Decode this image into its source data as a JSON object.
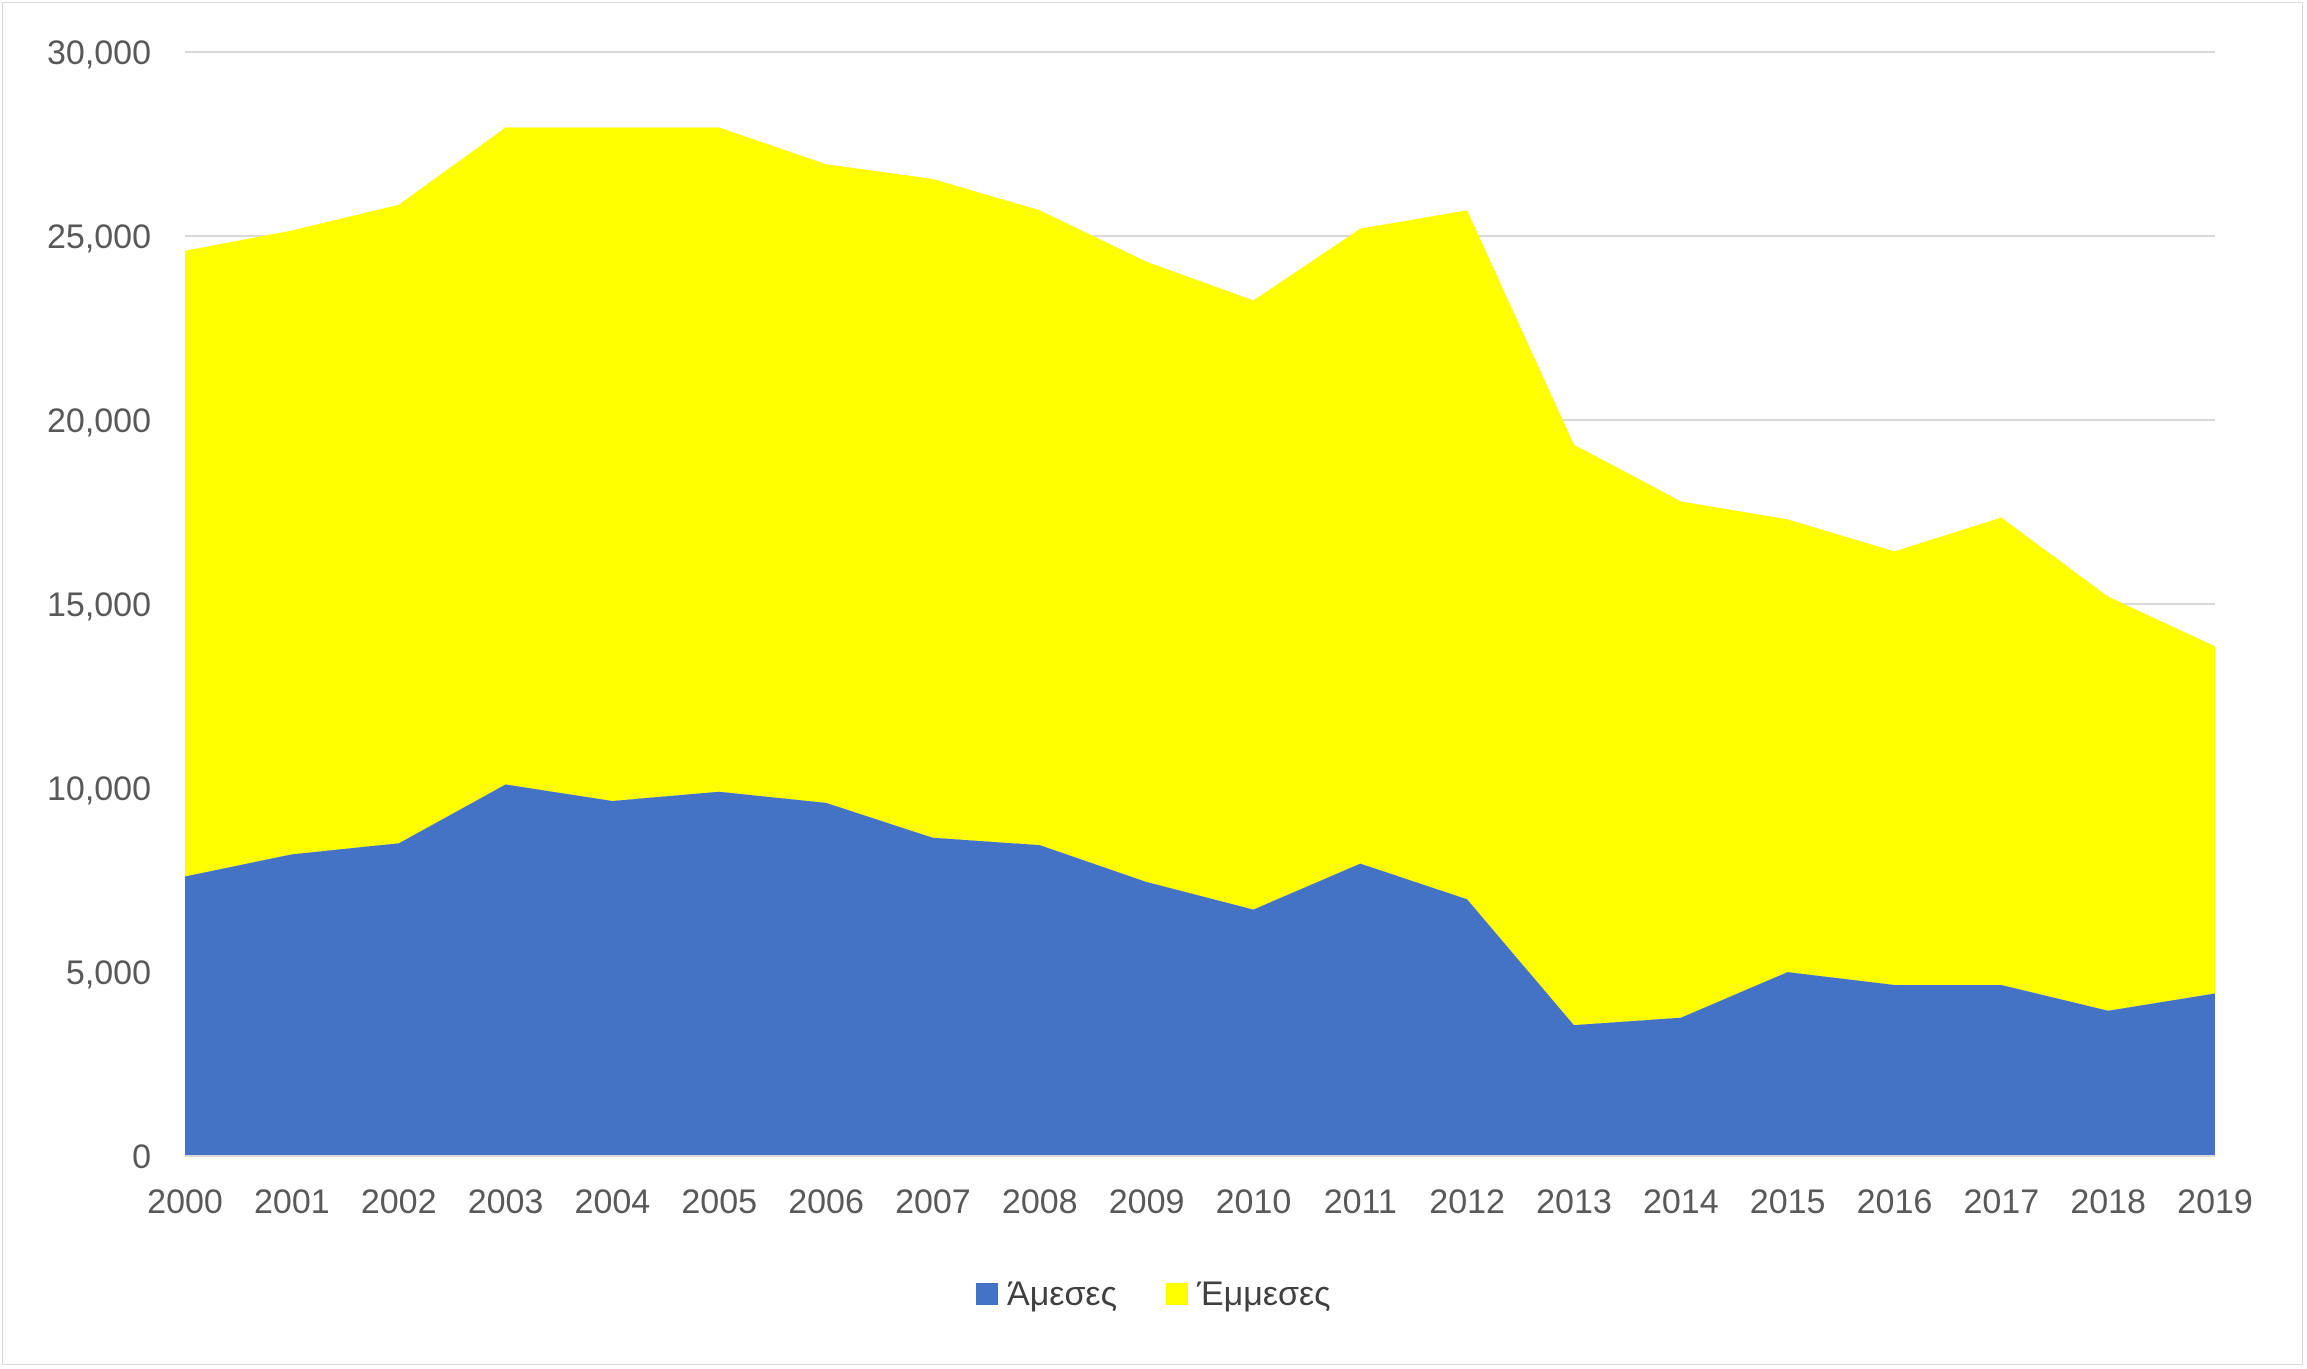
{
  "chart_data": {
    "type": "area",
    "stacked": true,
    "title": "",
    "xlabel": "",
    "ylabel": "",
    "categories": [
      "2000",
      "2001",
      "2002",
      "2003",
      "2004",
      "2005",
      "2006",
      "2007",
      "2008",
      "2009",
      "2010",
      "2011",
      "2012",
      "2013",
      "2014",
      "2015",
      "2016",
      "2017",
      "2018",
      "2019"
    ],
    "series": [
      {
        "name": "Άμεσες",
        "color": "#4472c4",
        "values": [
          7600,
          8200,
          8500,
          10100,
          9650,
          9900,
          9600,
          8650,
          8450,
          7450,
          6700,
          7950,
          6980,
          3560,
          3760,
          5000,
          4650,
          4650,
          3950,
          4420
        ]
      },
      {
        "name": "Έμμεσες",
        "color": "#ffff00",
        "values": [
          17000,
          16950,
          17350,
          17850,
          18300,
          18050,
          17350,
          17900,
          17250,
          16850,
          16550,
          17250,
          18720,
          15770,
          14030,
          12300,
          11780,
          12700,
          11250,
          9430
        ]
      }
    ],
    "ylim": [
      0,
      30000
    ],
    "yticks": [
      "0",
      "5,000",
      "10,000",
      "15,000",
      "20,000",
      "25,000",
      "30,000"
    ],
    "ytick_values": [
      0,
      5000,
      10000,
      15000,
      20000,
      25000,
      30000
    ],
    "grid": true,
    "legend_position": "bottom"
  }
}
